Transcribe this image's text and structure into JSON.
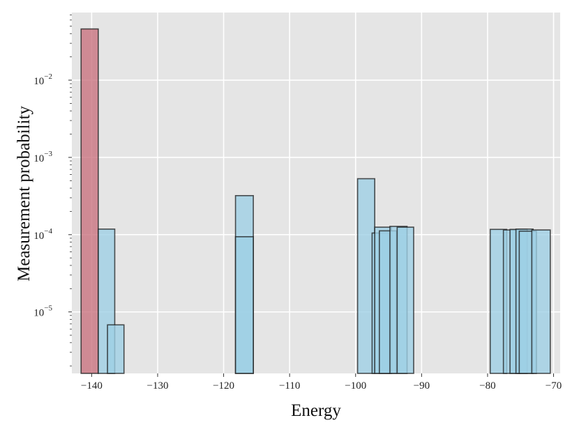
{
  "chart_data": {
    "type": "bar",
    "xlabel": "Energy",
    "ylabel": "Measurement probability",
    "y_scale": "log",
    "xlim": [
      -143.0,
      -69.0
    ],
    "ylim": [
      1.6e-06,
      0.075
    ],
    "x_ticks": [
      -140,
      -130,
      -120,
      -110,
      -100,
      -90,
      -80,
      -70
    ],
    "x_tick_labels": [
      "−140",
      "−130",
      "−120",
      "−110",
      "−100",
      "−90",
      "−80",
      "−70"
    ],
    "y_ticks": [
      {
        "value": 1e-05,
        "base": "10",
        "exp": "−5"
      },
      {
        "value": 0.0001,
        "base": "10",
        "exp": "−4"
      },
      {
        "value": 0.001,
        "base": "10",
        "exp": "−3"
      },
      {
        "value": 0.01,
        "base": "10",
        "exp": "−2"
      }
    ],
    "grid": true,
    "background_color": "#e5e5e5",
    "grid_color": "#ffffff",
    "series": [
      {
        "color": "#c9717e",
        "bars": [
          {
            "x0": -141.6,
            "x1": -139.0,
            "value": 0.046
          }
        ]
      },
      {
        "color": "#9dd0e6",
        "bars": [
          {
            "x0": -139.0,
            "x1": -136.5,
            "value": 0.000118
          },
          {
            "x0": -137.6,
            "x1": -135.1,
            "value": 6.8e-06
          },
          {
            "x0": -118.2,
            "x1": -115.5,
            "value": 0.00032
          },
          {
            "x0": -118.2,
            "x1": -115.5,
            "value": 9.4e-05
          },
          {
            "x0": -99.7,
            "x1": -97.1,
            "value": 0.00053
          },
          {
            "x0": -97.5,
            "x1": -94.9,
            "value": 0.000105
          },
          {
            "x0": -97.1,
            "x1": -94.6,
            "value": 0.000125
          },
          {
            "x0": -96.4,
            "x1": -93.8,
            "value": 0.000112
          },
          {
            "x0": -94.8,
            "x1": -92.2,
            "value": 0.000128
          },
          {
            "x0": -93.7,
            "x1": -91.2,
            "value": 0.000125
          },
          {
            "x0": -79.6,
            "x1": -77.1,
            "value": 0.000117
          },
          {
            "x0": -77.6,
            "x1": -75.1,
            "value": 0.000115
          },
          {
            "x0": -76.6,
            "x1": -74.0,
            "value": 0.000117
          },
          {
            "x0": -75.7,
            "x1": -73.1,
            "value": 0.000118
          },
          {
            "x0": -75.2,
            "x1": -72.6,
            "value": 0.000111
          },
          {
            "x0": -73.3,
            "x1": -70.5,
            "value": 0.000115
          }
        ]
      }
    ]
  }
}
